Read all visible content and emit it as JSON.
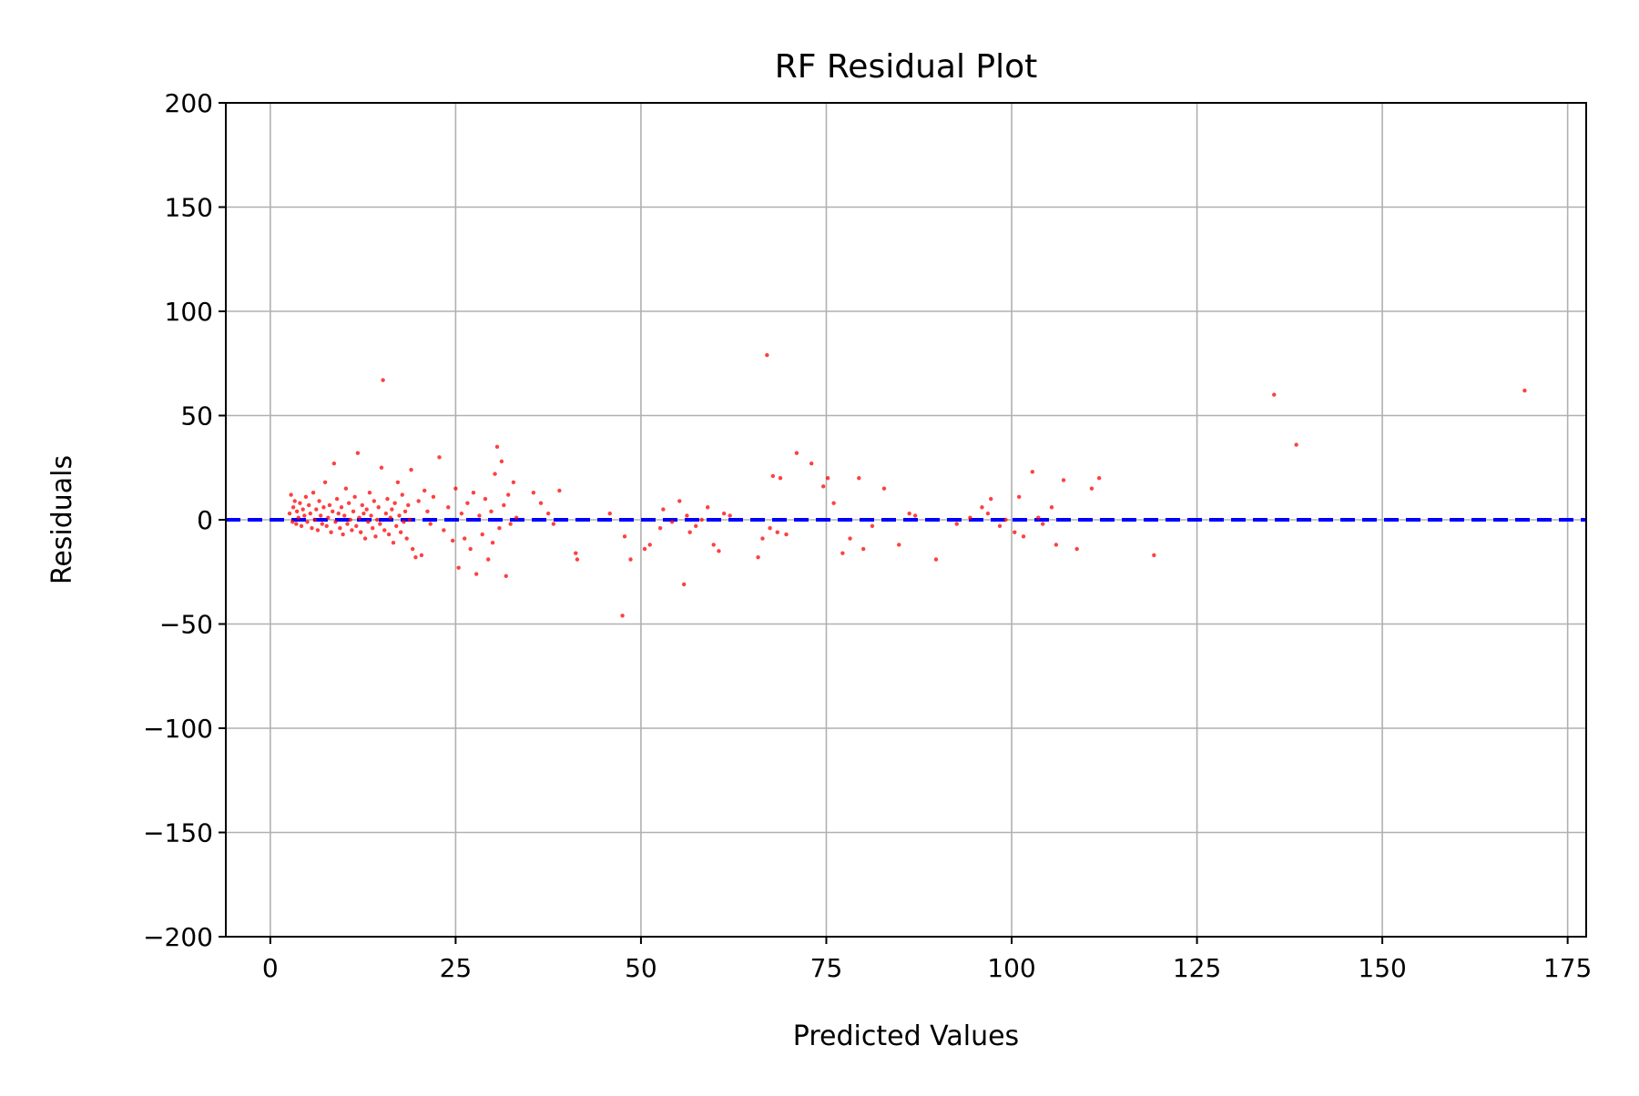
{
  "chart_data": {
    "type": "scatter",
    "title": "RF Residual Plot",
    "xlabel": "Predicted Values",
    "ylabel": "Residuals",
    "xlim": [
      -6,
      177.5
    ],
    "ylim": [
      -200,
      200
    ],
    "xticks": [
      0,
      25,
      50,
      75,
      100,
      125,
      150,
      175
    ],
    "yticks": [
      -200,
      -150,
      -100,
      -50,
      0,
      50,
      100,
      150,
      200
    ],
    "xtick_labels": [
      "0",
      "25",
      "50",
      "75",
      "100",
      "125",
      "150",
      "175"
    ],
    "ytick_labels": [
      "−200",
      "−150",
      "−100",
      "−50",
      "0",
      "50",
      "100",
      "150",
      "200"
    ],
    "grid": true,
    "reference_line": {
      "y": 0,
      "style": "dashed",
      "color": "#0000ff"
    },
    "point_color": "#ff0000",
    "points": [
      [
        2.6,
        3
      ],
      [
        2.8,
        12
      ],
      [
        3.0,
        -1
      ],
      [
        3.1,
        6
      ],
      [
        3.3,
        9
      ],
      [
        3.5,
        -2
      ],
      [
        3.6,
        4
      ],
      [
        3.8,
        1
      ],
      [
        4.0,
        8
      ],
      [
        4.2,
        -3
      ],
      [
        4.4,
        5
      ],
      [
        4.6,
        2
      ],
      [
        4.8,
        11
      ],
      [
        5.0,
        -1
      ],
      [
        5.2,
        7
      ],
      [
        5.4,
        3
      ],
      [
        5.6,
        -4
      ],
      [
        5.8,
        13
      ],
      [
        6.0,
        0
      ],
      [
        6.2,
        5
      ],
      [
        6.4,
        -5
      ],
      [
        6.6,
        9
      ],
      [
        6.8,
        2
      ],
      [
        7.0,
        -2
      ],
      [
        7.2,
        6
      ],
      [
        7.4,
        18
      ],
      [
        7.6,
        -3
      ],
      [
        7.8,
        1
      ],
      [
        8.0,
        7
      ],
      [
        8.2,
        -6
      ],
      [
        8.4,
        4
      ],
      [
        8.6,
        27
      ],
      [
        8.8,
        -1
      ],
      [
        9.0,
        10
      ],
      [
        9.2,
        3
      ],
      [
        9.4,
        -4
      ],
      [
        9.6,
        6
      ],
      [
        9.8,
        -7
      ],
      [
        10.0,
        2
      ],
      [
        10.2,
        15
      ],
      [
        10.4,
        -2
      ],
      [
        10.6,
        8
      ],
      [
        10.8,
        0
      ],
      [
        11.0,
        -5
      ],
      [
        11.2,
        4
      ],
      [
        11.4,
        11
      ],
      [
        11.6,
        -3
      ],
      [
        11.8,
        32
      ],
      [
        12.0,
        1
      ],
      [
        12.2,
        -6
      ],
      [
        12.4,
        7
      ],
      [
        12.6,
        3
      ],
      [
        12.8,
        -9
      ],
      [
        13.0,
        5
      ],
      [
        13.2,
        -1
      ],
      [
        13.4,
        13
      ],
      [
        13.6,
        2
      ],
      [
        13.8,
        -4
      ],
      [
        14.0,
        9
      ],
      [
        14.2,
        -8
      ],
      [
        14.4,
        0
      ],
      [
        14.6,
        6
      ],
      [
        14.8,
        -2
      ],
      [
        15.0,
        25
      ],
      [
        15.2,
        67
      ],
      [
        15.4,
        -5
      ],
      [
        15.6,
        3
      ],
      [
        15.8,
        10
      ],
      [
        16.0,
        -7
      ],
      [
        16.2,
        1
      ],
      [
        16.4,
        5
      ],
      [
        16.6,
        -11
      ],
      [
        16.8,
        8
      ],
      [
        17.0,
        -3
      ],
      [
        17.2,
        18
      ],
      [
        17.4,
        2
      ],
      [
        17.6,
        -6
      ],
      [
        17.8,
        12
      ],
      [
        18.0,
        -1
      ],
      [
        18.2,
        4
      ],
      [
        18.4,
        -9
      ],
      [
        18.6,
        7
      ],
      [
        18.8,
        0
      ],
      [
        19.0,
        24
      ],
      [
        19.2,
        -14
      ],
      [
        19.6,
        -18
      ],
      [
        20.0,
        9
      ],
      [
        20.4,
        -17
      ],
      [
        20.8,
        14
      ],
      [
        21.2,
        4
      ],
      [
        21.6,
        -2
      ],
      [
        22.0,
        11
      ],
      [
        22.8,
        30
      ],
      [
        23.4,
        -5
      ],
      [
        24.0,
        6
      ],
      [
        24.6,
        -10
      ],
      [
        25.0,
        15
      ],
      [
        25.4,
        -23
      ],
      [
        25.8,
        3
      ],
      [
        26.2,
        -9
      ],
      [
        26.6,
        8
      ],
      [
        27.0,
        -14
      ],
      [
        27.4,
        13
      ],
      [
        27.8,
        -26
      ],
      [
        28.2,
        2
      ],
      [
        28.6,
        -7
      ],
      [
        29.0,
        10
      ],
      [
        29.4,
        -19
      ],
      [
        29.8,
        4
      ],
      [
        30.0,
        -11
      ],
      [
        30.3,
        22
      ],
      [
        30.6,
        35
      ],
      [
        30.9,
        -4
      ],
      [
        31.2,
        28
      ],
      [
        31.5,
        7
      ],
      [
        31.8,
        -27
      ],
      [
        32.1,
        12
      ],
      [
        32.4,
        -2
      ],
      [
        32.8,
        18
      ],
      [
        33.2,
        1
      ],
      [
        35.5,
        13
      ],
      [
        36.5,
        8
      ],
      [
        37.5,
        3
      ],
      [
        38.2,
        -2
      ],
      [
        39.0,
        14
      ],
      [
        41.2,
        -16
      ],
      [
        41.4,
        -19
      ],
      [
        45.8,
        3
      ],
      [
        47.5,
        -46
      ],
      [
        47.8,
        -8
      ],
      [
        48.6,
        -19
      ],
      [
        50.5,
        -14
      ],
      [
        51.2,
        -12
      ],
      [
        52.6,
        -4
      ],
      [
        53.0,
        5
      ],
      [
        54.2,
        -1
      ],
      [
        55.2,
        9
      ],
      [
        55.8,
        -31
      ],
      [
        56.2,
        2
      ],
      [
        56.6,
        -6
      ],
      [
        57.4,
        -3
      ],
      [
        58.2,
        0
      ],
      [
        59.0,
        6
      ],
      [
        59.8,
        -12
      ],
      [
        60.5,
        -15
      ],
      [
        61.2,
        3
      ],
      [
        62.0,
        2
      ],
      [
        65.8,
        -18
      ],
      [
        66.4,
        -9
      ],
      [
        67.0,
        79
      ],
      [
        67.4,
        -4
      ],
      [
        67.8,
        21
      ],
      [
        68.4,
        -6
      ],
      [
        68.8,
        20
      ],
      [
        69.6,
        -7
      ],
      [
        71.0,
        32
      ],
      [
        73.0,
        27
      ],
      [
        74.6,
        16
      ],
      [
        75.2,
        20
      ],
      [
        76.0,
        8
      ],
      [
        77.2,
        -16
      ],
      [
        78.2,
        -9
      ],
      [
        79.4,
        20
      ],
      [
        80.0,
        -14
      ],
      [
        81.2,
        -3
      ],
      [
        82.8,
        15
      ],
      [
        84.8,
        -12
      ],
      [
        86.2,
        3
      ],
      [
        87.0,
        2
      ],
      [
        89.8,
        -19
      ],
      [
        92.6,
        -2
      ],
      [
        94.4,
        1
      ],
      [
        96.0,
        6
      ],
      [
        96.8,
        3
      ],
      [
        97.2,
        10
      ],
      [
        98.4,
        -3
      ],
      [
        99.2,
        0
      ],
      [
        100.4,
        -6
      ],
      [
        101.0,
        11
      ],
      [
        101.6,
        -8
      ],
      [
        102.8,
        23
      ],
      [
        103.6,
        1
      ],
      [
        104.2,
        -2
      ],
      [
        105.4,
        6
      ],
      [
        106.0,
        -12
      ],
      [
        107.0,
        19
      ],
      [
        108.8,
        -14
      ],
      [
        110.8,
        15
      ],
      [
        111.8,
        20
      ],
      [
        119.2,
        -17
      ],
      [
        135.4,
        60
      ],
      [
        138.4,
        36
      ],
      [
        169.2,
        62
      ]
    ]
  }
}
